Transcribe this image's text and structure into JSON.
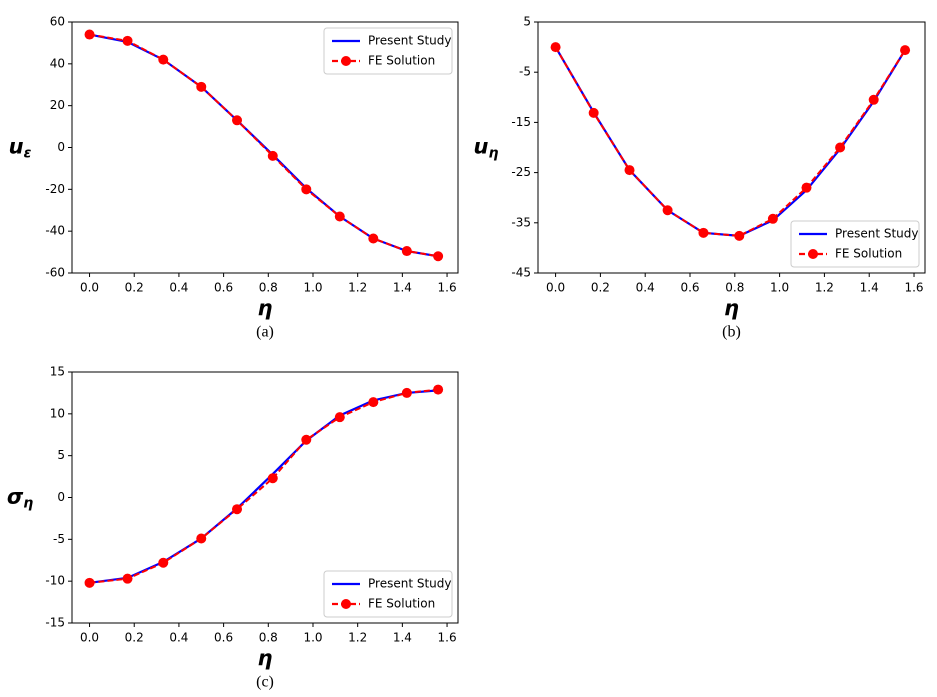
{
  "chart_data": [
    {
      "type": "line",
      "caption": "(a)",
      "xlabel": "η",
      "ylabel": "u",
      "ylabel_sub": "ε",
      "x": [
        0,
        0.17,
        0.33,
        0.5,
        0.66,
        0.82,
        0.97,
        1.12,
        1.27,
        1.42,
        1.56
      ],
      "series": [
        {
          "name": "Present Study",
          "color": "#0000ff",
          "style": "solid",
          "values": [
            54,
            50.5,
            42,
            29,
            13,
            -3.5,
            -19.5,
            -33,
            -43.5,
            -49.5,
            -52
          ]
        },
        {
          "name": "FE Solution",
          "color": "#ff0000",
          "style": "dashed-markers",
          "values": [
            54,
            51,
            42,
            29,
            13,
            -4,
            -20,
            -33,
            -43.5,
            -49.5,
            -52
          ]
        }
      ],
      "xlim": [
        -0.0785,
        1.649
      ],
      "ylim": [
        -60,
        60
      ],
      "xticks": [
        {
          "value": 0,
          "label": "0.0"
        },
        0.2,
        0.4,
        0.6,
        0.8,
        {
          "value": 1,
          "label": "1.0"
        },
        1.2,
        1.4,
        1.6
      ],
      "yticks": [
        -60,
        -40,
        -20,
        0,
        20,
        40,
        60
      ],
      "legend": "upper right"
    },
    {
      "type": "line",
      "caption": "(b)",
      "xlabel": "η",
      "ylabel": "u",
      "ylabel_sub": "η",
      "x": [
        0,
        0.17,
        0.33,
        0.5,
        0.66,
        0.82,
        0.97,
        1.12,
        1.27,
        1.42,
        1.56
      ],
      "series": [
        {
          "name": "Present Study",
          "color": "#0000ff",
          "style": "solid",
          "values": [
            0,
            -13,
            -24.5,
            -32.5,
            -37,
            -37.6,
            -34.5,
            -28.5,
            -20.3,
            -10.8,
            -0.6
          ]
        },
        {
          "name": "FE Solution",
          "color": "#ff0000",
          "style": "dashed-markers",
          "values": [
            0,
            -13.1,
            -24.5,
            -32.5,
            -37,
            -37.6,
            -34.2,
            -28,
            -20,
            -10.5,
            -0.6
          ]
        }
      ],
      "xlim": [
        -0.0785,
        1.649
      ],
      "ylim": [
        -45,
        5
      ],
      "xticks": [
        {
          "value": 0,
          "label": "0.0"
        },
        0.2,
        0.4,
        0.6,
        0.8,
        {
          "value": 1,
          "label": "1.0"
        },
        1.2,
        1.4,
        1.6
      ],
      "yticks": [
        -45,
        -35,
        -25,
        -15,
        -5,
        5
      ],
      "legend": "lower right"
    },
    {
      "type": "line",
      "caption": "(c)",
      "xlabel": "η",
      "ylabel": "σ",
      "ylabel_sub": "η",
      "x": [
        0,
        0.17,
        0.33,
        0.5,
        0.66,
        0.82,
        0.97,
        1.12,
        1.27,
        1.42,
        1.56
      ],
      "series": [
        {
          "name": "Present Study",
          "color": "#0000ff",
          "style": "solid",
          "values": [
            -10.2,
            -9.6,
            -7.7,
            -4.9,
            -1.3,
            2.8,
            6.8,
            9.8,
            11.6,
            12.5,
            12.8
          ]
        },
        {
          "name": "FE Solution",
          "color": "#ff0000",
          "style": "dashed-markers",
          "values": [
            -10.2,
            -9.7,
            -7.8,
            -4.9,
            -1.4,
            2.3,
            6.9,
            9.6,
            11.4,
            12.5,
            12.9
          ]
        }
      ],
      "xlim": [
        -0.0785,
        1.649
      ],
      "ylim": [
        -15,
        15
      ],
      "xticks": [
        {
          "value": 0,
          "label": "0.0"
        },
        0.2,
        0.4,
        0.6,
        0.8,
        {
          "value": 1,
          "label": "1.0"
        },
        1.2,
        1.4,
        1.6
      ],
      "yticks": [
        -15,
        -10,
        -5,
        0,
        5,
        10,
        15
      ],
      "legend": "lower right"
    }
  ]
}
